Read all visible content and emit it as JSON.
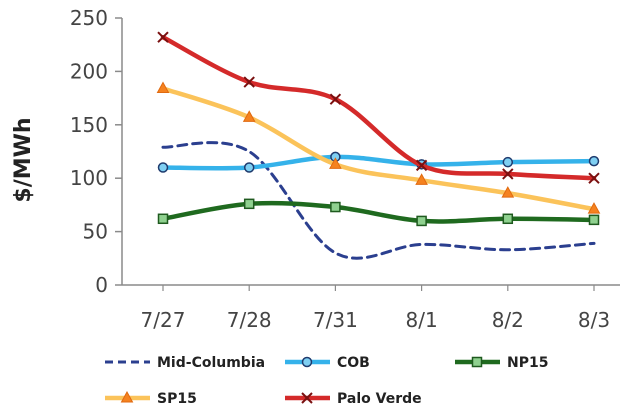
{
  "chart_data": {
    "type": "line",
    "title": "",
    "xlabel": "",
    "ylabel": "$/MWh",
    "categories": [
      "7/27",
      "7/28",
      "7/31",
      "8/1",
      "8/2",
      "8/3"
    ],
    "ylim": [
      0,
      250
    ],
    "yticks": [
      0,
      50,
      100,
      150,
      200,
      250
    ],
    "grid": false,
    "legend_position": "bottom",
    "series": [
      {
        "name": "Mid-Columbia",
        "values": [
          129,
          125,
          30,
          38,
          33,
          39
        ],
        "color": "#2b3f8f",
        "style": "dashed",
        "marker": "none"
      },
      {
        "name": "COB",
        "values": [
          110,
          110,
          120,
          113,
          115,
          116
        ],
        "color": "#35b2ea",
        "style": "solid",
        "marker": "circle"
      },
      {
        "name": "NP15",
        "values": [
          62,
          76,
          73,
          60,
          62,
          61
        ],
        "color": "#1f6a1f",
        "style": "solid",
        "marker": "square"
      },
      {
        "name": "SP15",
        "values": [
          184,
          157,
          113,
          98,
          86,
          71
        ],
        "color": "#fbc35a",
        "style": "solid",
        "marker": "triangle"
      },
      {
        "name": "Palo Verde",
        "values": [
          232,
          190,
          174,
          112,
          104,
          100
        ],
        "color": "#d42a2a",
        "style": "solid",
        "marker": "x"
      }
    ]
  }
}
